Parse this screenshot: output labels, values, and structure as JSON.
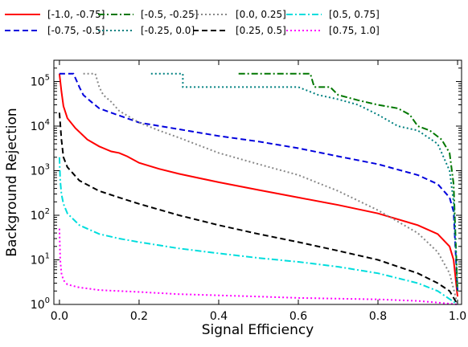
{
  "chart_data": {
    "type": "line",
    "title": "",
    "xlabel": "Signal Efficiency",
    "ylabel": "Background Rejection",
    "xlim": [
      0.0,
      1.0
    ],
    "ylim": [
      1,
      300000
    ],
    "yscale": "log",
    "grid": false,
    "legend_placement": "above plot, 5 columns",
    "x_ticks": [
      {
        "value": 0.0,
        "label": "0.0"
      },
      {
        "value": 0.2,
        "label": "0.2"
      },
      {
        "value": 0.4,
        "label": "0.4"
      },
      {
        "value": 0.6,
        "label": "0.6"
      },
      {
        "value": 0.8,
        "label": "0.8"
      },
      {
        "value": 1.0,
        "label": "1.0"
      }
    ],
    "y_ticks": [
      {
        "value": 1,
        "base": "10",
        "exp": "0"
      },
      {
        "value": 10,
        "base": "10",
        "exp": "1"
      },
      {
        "value": 100,
        "base": "10",
        "exp": "2"
      },
      {
        "value": 1000,
        "base": "10",
        "exp": "3"
      },
      {
        "value": 10000,
        "base": "10",
        "exp": "4"
      },
      {
        "value": 100000,
        "base": "10",
        "exp": "5"
      }
    ],
    "series": [
      {
        "name": "[-1.0, -0.75]",
        "color": "#ff0000",
        "dash": "solid",
        "x": [
          0.0,
          0.005,
          0.01,
          0.02,
          0.04,
          0.07,
          0.1,
          0.13,
          0.15,
          0.17,
          0.2,
          0.25,
          0.3,
          0.4,
          0.5,
          0.6,
          0.7,
          0.8,
          0.9,
          0.95,
          0.98,
          0.99,
          1.0
        ],
        "y": [
          150000,
          60000,
          28000,
          15000,
          9000,
          5000,
          3500,
          2700,
          2500,
          2100,
          1500,
          1100,
          850,
          550,
          370,
          250,
          170,
          110,
          60,
          38,
          20,
          10,
          1.5
        ]
      },
      {
        "name": "[-0.75, -0.5]",
        "color": "#0000dd",
        "dash": "dashed",
        "x": [
          0.0,
          0.005,
          0.01,
          0.02,
          0.035,
          0.05,
          0.06,
          0.08,
          0.1,
          0.13,
          0.2,
          0.3,
          0.4,
          0.5,
          0.6,
          0.7,
          0.8,
          0.9,
          0.95,
          0.98,
          0.99,
          1.0
        ],
        "y": [
          150000,
          150000,
          150000,
          150000,
          150000,
          75000,
          50000,
          35000,
          25000,
          20000,
          12000,
          8500,
          6000,
          4500,
          3200,
          2100,
          1400,
          800,
          500,
          250,
          120,
          2
        ]
      },
      {
        "name": "[-0.5, -0.25]",
        "color": "#007700",
        "dash": "dashdot",
        "x": [
          0.45,
          0.5,
          0.6,
          0.63,
          0.64,
          0.68,
          0.7,
          0.75,
          0.8,
          0.85,
          0.88,
          0.9,
          0.93,
          0.96,
          0.98,
          0.99,
          1.0
        ],
        "y": [
          150000,
          150000,
          150000,
          150000,
          75000,
          75000,
          50000,
          38000,
          30000,
          25000,
          18000,
          10000,
          8000,
          5000,
          2500,
          500,
          2
        ]
      },
      {
        "name": "[-0.25, 0.0]",
        "color": "#008080",
        "dash": "dotted",
        "x": [
          0.23,
          0.31,
          0.31,
          0.5,
          0.6,
          0.65,
          0.7,
          0.75,
          0.8,
          0.85,
          0.9,
          0.95,
          0.98,
          0.99,
          1.0
        ],
        "y": [
          150000,
          150000,
          75000,
          75000,
          75000,
          50000,
          40000,
          30000,
          18000,
          10000,
          8000,
          4000,
          1000,
          200,
          2
        ]
      },
      {
        "name": "[0.0, 0.25]",
        "color": "#888888",
        "dash": "dotted",
        "x": [
          0.06,
          0.08,
          0.09,
          0.1,
          0.11,
          0.13,
          0.15,
          0.2,
          0.25,
          0.3,
          0.4,
          0.5,
          0.6,
          0.7,
          0.8,
          0.9,
          0.95,
          0.98,
          1.0
        ],
        "y": [
          150000,
          150000,
          150000,
          75000,
          50000,
          35000,
          22000,
          12000,
          8000,
          5500,
          2500,
          1400,
          800,
          350,
          130,
          40,
          15,
          5,
          1
        ]
      },
      {
        "name": "[0.25, 0.5]",
        "color": "#000000",
        "dash": "dashed",
        "x": [
          0.0,
          0.005,
          0.01,
          0.02,
          0.05,
          0.1,
          0.15,
          0.2,
          0.3,
          0.4,
          0.5,
          0.6,
          0.7,
          0.8,
          0.9,
          0.95,
          0.98,
          1.0
        ],
        "y": [
          20000,
          5000,
          2000,
          1200,
          600,
          350,
          250,
          180,
          100,
          60,
          38,
          25,
          16,
          10,
          5,
          3,
          2,
          1
        ]
      },
      {
        "name": "[0.5, 0.75]",
        "color": "#00dddd",
        "dash": "dashdot",
        "x": [
          0.0,
          0.002,
          0.005,
          0.01,
          0.02,
          0.05,
          0.1,
          0.15,
          0.2,
          0.3,
          0.4,
          0.5,
          0.6,
          0.7,
          0.8,
          0.9,
          0.95,
          1.0
        ],
        "y": [
          2000,
          600,
          300,
          180,
          110,
          60,
          38,
          30,
          25,
          18,
          14,
          11,
          9,
          7,
          5,
          3,
          2,
          1
        ]
      },
      {
        "name": "[0.75, 1.0]",
        "color": "#ff00ff",
        "dash": "dotted",
        "x": [
          0.0,
          0.002,
          0.005,
          0.01,
          0.02,
          0.05,
          0.1,
          0.2,
          0.3,
          0.4,
          0.5,
          0.6,
          0.7,
          0.8,
          0.9,
          0.95,
          1.0
        ],
        "y": [
          50,
          10,
          5,
          3.5,
          2.8,
          2.4,
          2.1,
          1.9,
          1.7,
          1.6,
          1.5,
          1.4,
          1.35,
          1.3,
          1.2,
          1.1,
          1.0
        ]
      }
    ]
  }
}
